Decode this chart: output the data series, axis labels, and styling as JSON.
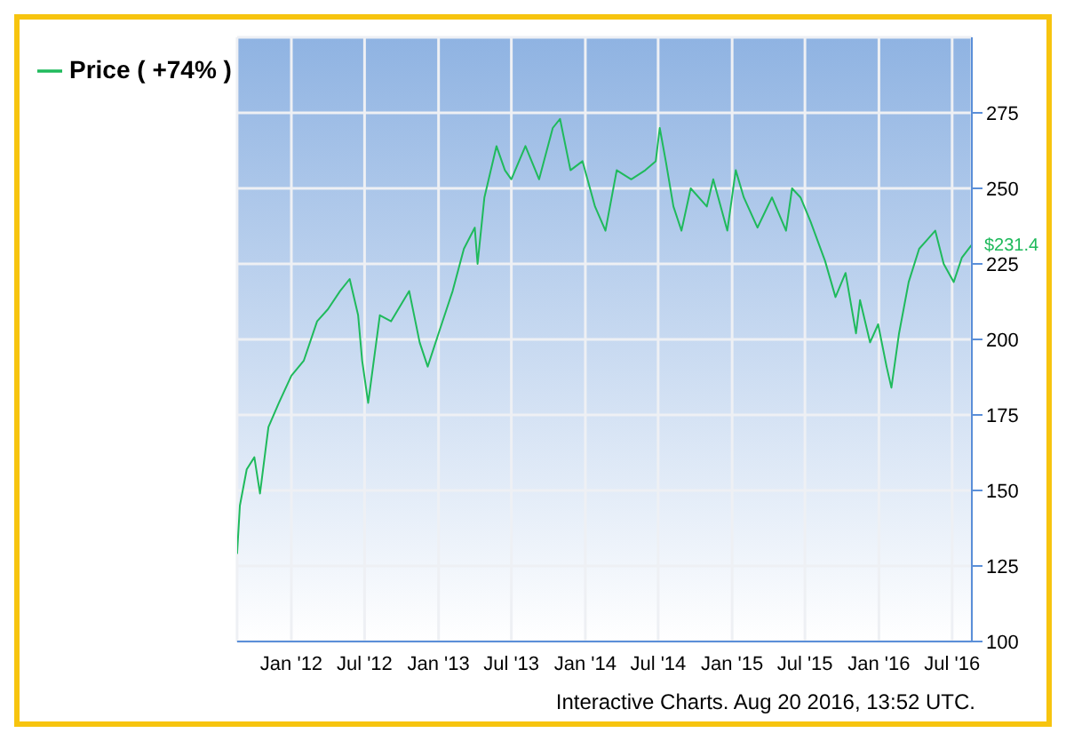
{
  "chart_data": {
    "type": "line",
    "x": [
      "2011-08-19",
      "2011-08-26",
      "2011-09-12",
      "2011-10-01",
      "2011-10-15",
      "2011-11-05",
      "2011-12-01",
      "2012-01-01",
      "2012-02-01",
      "2012-03-05",
      "2012-04-01",
      "2012-05-01",
      "2012-05-25",
      "2012-06-15",
      "2012-06-25",
      "2012-07-10",
      "2012-07-22",
      "2012-08-08",
      "2012-09-05",
      "2012-10-20",
      "2012-11-15",
      "2012-12-05",
      "2013-01-01",
      "2013-02-05",
      "2013-03-05",
      "2013-04-01",
      "2013-04-08",
      "2013-04-25",
      "2013-05-25",
      "2013-06-15",
      "2013-07-01",
      "2013-08-05",
      "2013-09-08",
      "2013-10-12",
      "2013-10-30",
      "2013-11-25",
      "2013-12-25",
      "2014-01-25",
      "2014-02-20",
      "2014-03-20",
      "2014-04-25",
      "2014-05-30",
      "2014-06-25",
      "2014-07-05",
      "2014-07-20",
      "2014-08-08",
      "2014-08-28",
      "2014-09-20",
      "2014-10-30",
      "2014-11-15",
      "2014-12-20",
      "2015-01-10",
      "2015-01-30",
      "2015-03-05",
      "2015-04-10",
      "2015-05-15",
      "2015-05-30",
      "2015-06-20",
      "2015-07-15",
      "2015-08-20",
      "2015-09-15",
      "2015-10-10",
      "2015-11-05",
      "2015-11-15",
      "2015-12-10",
      "2015-12-30",
      "2016-01-20",
      "2016-02-01",
      "2016-02-20",
      "2016-03-15",
      "2016-04-10",
      "2016-04-30",
      "2016-05-20",
      "2016-06-10",
      "2016-07-05",
      "2016-07-25",
      "2016-08-19"
    ],
    "series": [
      {
        "name": "Price ( +74% )",
        "color": "#1fba5c",
        "values": [
          129,
          145,
          157,
          161,
          149,
          171,
          179,
          188,
          193,
          206,
          210,
          216,
          220,
          208,
          193,
          179,
          191,
          208,
          206,
          216,
          199,
          191,
          202,
          216,
          230,
          237,
          225,
          247,
          264,
          256,
          253,
          264,
          253,
          270,
          273,
          256,
          259,
          244,
          236,
          256,
          253,
          256,
          259,
          270,
          259,
          244,
          236,
          250,
          244,
          253,
          236,
          256,
          247,
          237,
          247,
          236,
          250,
          247,
          239,
          226,
          214,
          222,
          202,
          213,
          199,
          205,
          191,
          184,
          202,
          219,
          230,
          233,
          236,
          225,
          219,
          227,
          231.4
        ]
      }
    ],
    "ylim": [
      100,
      300
    ],
    "yticks": [
      100,
      125,
      150,
      175,
      200,
      225,
      250,
      275
    ],
    "xlim": [
      "2011-08-19",
      "2016-08-19"
    ],
    "xticks": [
      {
        "value": "2012-01-01",
        "label": "Jan '12"
      },
      {
        "value": "2012-07-01",
        "label": "Jul '12"
      },
      {
        "value": "2013-01-01",
        "label": "Jan '13"
      },
      {
        "value": "2013-07-01",
        "label": "Jul '13"
      },
      {
        "value": "2014-01-01",
        "label": "Jan '14"
      },
      {
        "value": "2014-07-01",
        "label": "Jul '14"
      },
      {
        "value": "2015-01-01",
        "label": "Jan '15"
      },
      {
        "value": "2015-07-01",
        "label": "Jul '15"
      },
      {
        "value": "2016-01-01",
        "label": "Jan '16"
      },
      {
        "value": "2016-07-01",
        "label": "Jul '16"
      }
    ],
    "grid": true,
    "legend": "top left",
    "marker": "none",
    "line_style": "solid",
    "annotations": [
      "Interactive Charts. Aug 20 2016, 13:52 UTC.",
      {
        "text": "$231.4",
        "x": "2016-08-19",
        "y": 231.4
      }
    ]
  }
}
